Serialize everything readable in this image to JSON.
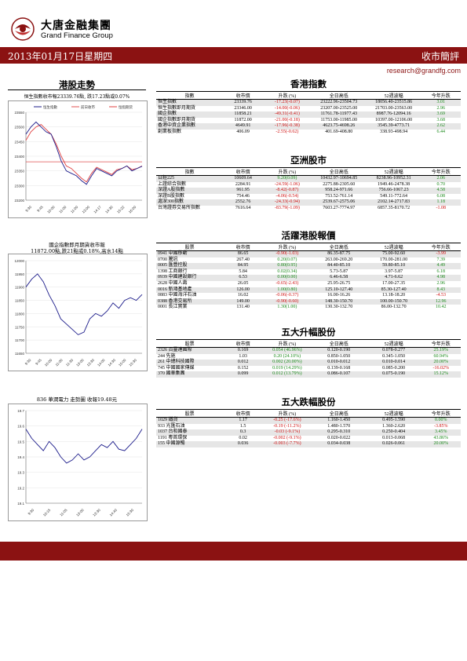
{
  "header": {
    "brand_cn": "大唐金融集團",
    "brand_en": "Grand Finance Group",
    "date": "2013年01月17日星期四",
    "report_type": "收市簡評",
    "email": "research@grandfg.com"
  },
  "left": {
    "hk_trend_title": "港股走勢",
    "chart1": {
      "caption": "恒生指數收市報23339.76點, 跌17.23點或0.07%",
      "legend": [
        "恒生指數",
        "前日收市",
        "恒指期货"
      ],
      "yticks": [
        "23200",
        "23300",
        "23350",
        "23400",
        "23450",
        "23500",
        "23550"
      ],
      "xticks": [
        "9:30",
        "9:45",
        "10:00",
        "11:00",
        "11:00",
        "13:00",
        "14:17",
        "14:30",
        "15:22",
        "16:00"
      ],
      "ylim": [
        23200,
        23560
      ],
      "series": [
        23470,
        23500,
        23520,
        23500,
        23480,
        23470,
        23420,
        23360,
        23320,
        23310,
        23300,
        23280,
        23265,
        23300,
        23330,
        23320,
        23310,
        23300,
        23320,
        23330,
        23340,
        23320,
        23330,
        23339
      ],
      "series2": [
        23445,
        23480,
        23500,
        23510,
        23490,
        23470,
        23430,
        23380,
        23340,
        23330,
        23310,
        23290,
        23275,
        23310,
        23335,
        23325,
        23315,
        23305,
        23325,
        23330,
        23340,
        23325,
        23330,
        23340
      ],
      "prev_close": 23357
    },
    "chart2": {
      "caption1": "國企指數即月期貨收市報",
      "caption2": "11872.00點,跌21點或0.18%,高水14點",
      "yticks": [
        "11650",
        "11700",
        "11750",
        "11800",
        "11850",
        "11900",
        "11950",
        "12000"
      ],
      "xticks": [
        "9:30",
        "9:45",
        "10:00",
        "11:00",
        "11:30",
        "13:00",
        "13:30",
        "14:00",
        "14:30",
        "15:00",
        "15:30"
      ],
      "ylim": [
        11650,
        12000
      ],
      "series": [
        11900,
        11930,
        11950,
        11920,
        11870,
        11830,
        11780,
        11760,
        11740,
        11720,
        11730,
        11780,
        11800,
        11790,
        11810,
        11840,
        11820,
        11850,
        11860,
        11850,
        11872
      ]
    },
    "chart3": {
      "caption": "836 華潤電力 走勢圖  收報19.48元",
      "yticks": [
        "19.1",
        "19.2",
        "19.3",
        "19.4",
        "19.5",
        "19.6",
        "19.7"
      ],
      "xticks": [
        "9:30",
        "10:15",
        "11:05",
        "13:00",
        "13:30",
        "14:40",
        "15:30"
      ],
      "ylim": [
        19.1,
        19.7
      ],
      "series": [
        19.58,
        19.52,
        19.48,
        19.44,
        19.5,
        19.46,
        19.4,
        19.36,
        19.38,
        19.42,
        19.38,
        19.4,
        19.44,
        19.48,
        19.46,
        19.5,
        19.45,
        19.44,
        19.48,
        19.52,
        19.58
      ]
    }
  },
  "hk_index": {
    "title": "香港指數",
    "headers": [
      "指數",
      "收市價",
      "升跌 (%)",
      "全日高低",
      "52週波幅",
      "今年升跌"
    ],
    "rows": [
      {
        "name": "恒生指數",
        "close": "23339.76",
        "chg": "-17.23(-0.07)",
        "dir": "dn",
        "range": "23222.96-23504.73",
        "wk52": "18056.40-23515.86",
        "ytd": "3.01",
        "ytddir": "up"
      },
      {
        "name": "恒生指數即月期貨",
        "close": "23346.00",
        "chg": "-14.00(-0.06)",
        "dir": "dn",
        "range": "23207.00-23525.00",
        "wk52": "21703.00-23563.00",
        "ytd": "2.96",
        "ytddir": "up"
      },
      {
        "name": "國企指數",
        "close": "11858.21",
        "chg": "-49.31(-0.41)",
        "dir": "dn",
        "range": "11761.78-11977.43",
        "wk52": "8987.76-12094.16",
        "ytd": "3.69",
        "ytddir": "up"
      },
      {
        "name": "國企指數即月期貨",
        "close": "11872.00",
        "chg": "-21.00(-0.18)",
        "dir": "dn",
        "range": "11753.00-11985.00",
        "wk52": "10397.00-12106.00",
        "ytd": "3.68",
        "ytddir": "up"
      },
      {
        "name": "香港中資企業指數",
        "close": "4649.91",
        "chg": "-17.96(-0.38)",
        "dir": "dn",
        "range": "4623.75-4698.26",
        "wk52": "3545.39-4773.71",
        "ytd": "2.62",
        "ytddir": "up"
      },
      {
        "name": "創業板指數",
        "close": "406.09",
        "chg": "-2.55(-0.62)",
        "dir": "dn",
        "range": "401.69-408.80",
        "wk52": "338.93-498.94",
        "ytd": "6.44",
        "ytddir": "up"
      }
    ]
  },
  "asia": {
    "title": "亞洲股市",
    "headers": [
      "指數",
      "收市價",
      "升跌 (%)",
      "全日高低",
      "52週波幅",
      "今年升跌"
    ],
    "rows": [
      {
        "name": "日經225",
        "close": "10609.64",
        "chg": "9.20(0.09)",
        "dir": "up",
        "range": "10432.97-10694.85",
        "wk52": "8238.96-10952.31",
        "ytd": "2.06",
        "ytddir": "up"
      },
      {
        "name": "上證綜合指數",
        "close": "2284.91",
        "chg": "-24.59(-1.06)",
        "dir": "dn",
        "range": "2275.88-2305.60",
        "wk52": "1949.46-2478.38",
        "ytd": "0.70",
        "ytddir": "up"
      },
      {
        "name": "深證A股指數",
        "close": "961.95",
        "chg": "-8.42(-0.87)",
        "dir": "dn",
        "range": "958.24-971.66",
        "wk52": "756.66-1067.23",
        "ytd": "4.58",
        "ytddir": "up"
      },
      {
        "name": "深證B股指數",
        "close": "754.46",
        "chg": "-4.06(-0.54)",
        "dir": "dn",
        "range": "753.52-761.14",
        "wk52": "549.11-772.64",
        "ytd": "6.08",
        "ytddir": "up"
      },
      {
        "name": "滬深300指數",
        "close": "2552.76",
        "chg": "-24.33(-0.94)",
        "dir": "dn",
        "range": "2539.67-2575.06",
        "wk52": "2102.14-2717.83",
        "ytd": "1.18",
        "ytddir": "up"
      },
      {
        "name": "台灣證券交易所指數",
        "close": "7616.64",
        "chg": "-83.79(-1.09)",
        "dir": "dn",
        "range": "7603.27-7774.97",
        "wk52": "6857.35-8170.72",
        "ytd": "-1.08",
        "ytddir": "dn"
      }
    ]
  },
  "active": {
    "title": "活躍港股報價",
    "headers": [
      "股票",
      "收市價",
      "升跌 (%)",
      "全日高低",
      "52週波幅",
      "今年升跌"
    ],
    "rows": [
      {
        "name": "0941  中國移動",
        "close": "86.65",
        "chg": "-0.90(-1.03)",
        "dir": "dn",
        "range": "86.35-87.75",
        "wk52": "75.00-92.60",
        "ytd": "-3.99",
        "ytddir": "dn"
      },
      {
        "name": "0700  騰訊",
        "close": "267.40",
        "chg": "0.20(0.07)",
        "dir": "up",
        "range": "263.00-269.20",
        "wk52": "170.00-281.00",
        "ytd": "7.39",
        "ytddir": "up"
      },
      {
        "name": "0005  匯豐控股",
        "close": "84.95",
        "chg": "0.80(0.95)",
        "dir": "up",
        "range": "84.40-85.10",
        "wk52": "59.80-85.10",
        "ytd": "4.49",
        "ytddir": "up"
      },
      {
        "name": "1398  工商銀行",
        "close": "5.84",
        "chg": "0.02(0.34)",
        "dir": "up",
        "range": "5.73-5.87",
        "wk52": "3.97-5.87",
        "ytd": "6.18",
        "ytddir": "up"
      },
      {
        "name": "0939  中國建設銀行",
        "close": "6.53",
        "chg": "0.00(0.00)",
        "dir": "up",
        "range": "6.46-6.58",
        "wk52": "4.71-6.62",
        "ytd": "4.98",
        "ytddir": "up"
      },
      {
        "name": "2628  中國人壽",
        "close": "26.05",
        "chg": "-0.65(-2.43)",
        "dir": "dn",
        "range": "25.95-26.75",
        "wk52": "17.00-27.35",
        "ytd": "2.96",
        "ytddir": "up"
      },
      {
        "name": "0016  新鴻基地產",
        "close": "126.00",
        "chg": "1.00(0.80)",
        "dir": "up",
        "range": "125.10-127.40",
        "wk52": "85.30-127.40",
        "ytd": "8.43",
        "ytddir": "up"
      },
      {
        "name": "0883  中國海洋石油",
        "close": "16.02",
        "chg": "-0.06(-0.37)",
        "dir": "dn",
        "range": "16.00-16.26",
        "wk52": "13.18-18.20",
        "ytd": "-4.53",
        "ytddir": "dn"
      },
      {
        "name": "0388  香港交易所",
        "close": "149.00",
        "chg": "-0.90(-0.60)",
        "dir": "dn",
        "range": "148.30-150.70",
        "wk52": "100.00-150.70",
        "ytd": "12.96",
        "ytddir": "up"
      },
      {
        "name": "0001  長江實業",
        "close": "131.40",
        "chg": "1.30(1.00)",
        "dir": "up",
        "range": "130.30-132.70",
        "wk52": "86.00-132.70",
        "ytd": "10.42",
        "ytddir": "up"
      }
    ]
  },
  "gainers": {
    "title": "五大升幅股份",
    "headers": [
      "股票",
      "收市價",
      "升跌 (%)",
      "全日高低",
      "52週波幅",
      "今年升跌"
    ],
    "rows": [
      {
        "name": "2326  百靈達國際",
        "close": "0.169",
        "chg": "0.054 (46.96%)",
        "dir": "up",
        "range": "0.120-0.190",
        "wk52": "0.078-0.277",
        "ytd": "25.19%",
        "ytddir": "up"
      },
      {
        "name": "244  先施",
        "close": "1.03",
        "chg": "0.20 (24.10%)",
        "dir": "up",
        "range": "0.850-1.050",
        "wk52": "0.345-1.050",
        "ytd": "60.94%",
        "ytddir": "up"
      },
      {
        "name": "261  中總科技國際",
        "close": "0.012",
        "chg": "0.002 (20.00%)",
        "dir": "up",
        "range": "0.010-0.012",
        "wk52": "0.010-0.014",
        "ytd": "20.00%",
        "ytddir": "up"
      },
      {
        "name": "745  中國國家傳媒",
        "close": "0.152",
        "chg": "0.019 (14.29%)",
        "dir": "up",
        "range": "0.139-0.168",
        "wk52": "0.085-0.200",
        "ytd": "-16.02%",
        "ytddir": "dn"
      },
      {
        "name": "370  國華集團",
        "close": "0.099",
        "chg": "0.012 (13.79%)",
        "dir": "up",
        "range": "0.086-0.107",
        "wk52": "0.075-0.190",
        "ytd": "15.12%",
        "ytddir": "up"
      }
    ]
  },
  "losers": {
    "title": "五大跌幅股份",
    "headers": [
      "股票",
      "收市價",
      "升跌 (%)",
      "全日高低",
      "52週波幅",
      "今年升跌"
    ],
    "rows": [
      {
        "name": "1029  鐵貨",
        "close": "1.17",
        "chg": "-0.25 (-17.6%)",
        "dir": "dn",
        "range": "1.160-1.450",
        "wk52": "0.495-1.590",
        "ytd": "0.00%",
        "ytddir": "up"
      },
      {
        "name": "933  光匯石油",
        "close": "1.5",
        "chg": "-0.19 (-11.2%)",
        "dir": "dn",
        "range": "1.480-1.570",
        "wk52": "1.360-2.620",
        "ytd": "-3.85%",
        "ytddir": "dn"
      },
      {
        "name": "1037  台和國泰",
        "close": "0.3",
        "chg": "-0.03 (-9.1%)",
        "dir": "dn",
        "range": "0.295-0.310",
        "wk52": "0.250-0.404",
        "ytd": "3.45%",
        "ytddir": "up"
      },
      {
        "name": "1191  粵首環保",
        "close": "0.02",
        "chg": "-0.002 (-9.1%)",
        "dir": "dn",
        "range": "0.020-0.022",
        "wk52": "0.013-0.068",
        "ytd": "43.86%",
        "ytddir": "up"
      },
      {
        "name": "155  中國源暢",
        "close": "0.036",
        "chg": "-0.003 (-7.7%)",
        "dir": "dn",
        "range": "0.034-0.038",
        "wk52": "0.026-0.061",
        "ytd": "20.00%",
        "ytddir": "up"
      }
    ]
  },
  "colors": {
    "brand": "#8b1212",
    "up": "#1a8a1a",
    "down": "#d01010"
  }
}
